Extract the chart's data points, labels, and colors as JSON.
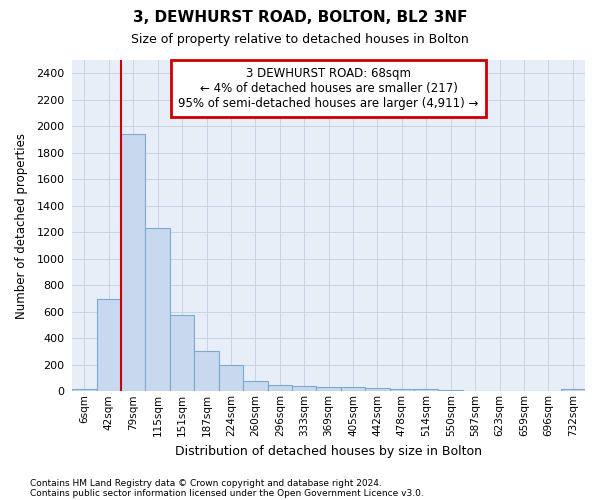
{
  "title1": "3, DEWHURST ROAD, BOLTON, BL2 3NF",
  "title2": "Size of property relative to detached houses in Bolton",
  "xlabel": "Distribution of detached houses by size in Bolton",
  "ylabel": "Number of detached properties",
  "bar_labels": [
    "6sqm",
    "42sqm",
    "79sqm",
    "115sqm",
    "151sqm",
    "187sqm",
    "224sqm",
    "260sqm",
    "296sqm",
    "333sqm",
    "369sqm",
    "405sqm",
    "442sqm",
    "478sqm",
    "514sqm",
    "550sqm",
    "587sqm",
    "623sqm",
    "659sqm",
    "696sqm",
    "732sqm"
  ],
  "bar_values": [
    15,
    700,
    1940,
    1230,
    575,
    305,
    200,
    80,
    45,
    38,
    35,
    35,
    25,
    20,
    18,
    12,
    5,
    4,
    3,
    3,
    18
  ],
  "bar_color": "#c8d8ee",
  "bar_edge_color": "#7aaad0",
  "red_line_x": 1.5,
  "annotation_text": "3 DEWHURST ROAD: 68sqm\n← 4% of detached houses are smaller (217)\n95% of semi-detached houses are larger (4,911) →",
  "annotation_box_edge": "#cc0000",
  "ylim_max": 2500,
  "yticks": [
    0,
    200,
    400,
    600,
    800,
    1000,
    1200,
    1400,
    1600,
    1800,
    2000,
    2200,
    2400
  ],
  "footnote1": "Contains HM Land Registry data © Crown copyright and database right 2024.",
  "footnote2": "Contains public sector information licensed under the Open Government Licence v3.0.",
  "grid_color": "#c8d4e4",
  "bg_color": "#e8eef8"
}
